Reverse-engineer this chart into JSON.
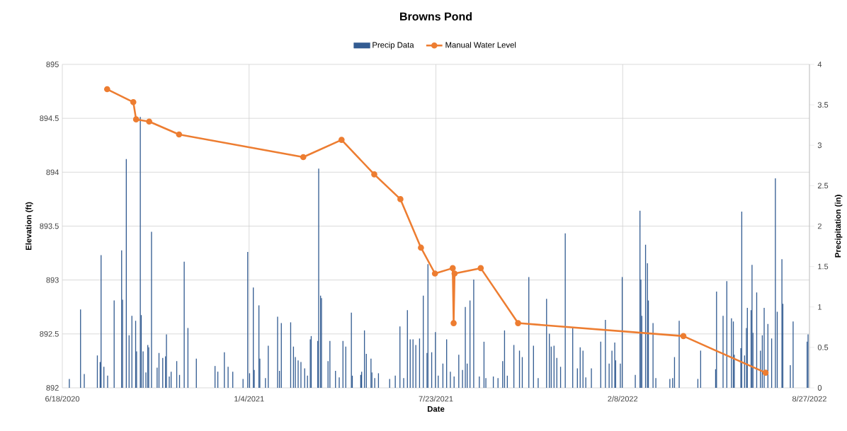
{
  "chart_data": {
    "type": "bar",
    "title": "Browns Pond",
    "xlabel": "Date",
    "ylabel": "Elevation (ft)",
    "y2label": "Precipitation (in)",
    "xlim": [
      "2020-06-18",
      "2022-08-27"
    ],
    "xticks": [
      {
        "value": "2020-06-18",
        "label": "6/18/2020"
      },
      {
        "value": "2021-01-04",
        "label": "1/4/2021"
      },
      {
        "value": "2021-07-23",
        "label": "7/23/2021"
      },
      {
        "value": "2022-02-08",
        "label": "2/8/2022"
      },
      {
        "value": "2022-08-27",
        "label": "8/27/2022"
      }
    ],
    "ylim": [
      892,
      895
    ],
    "yticks": [
      892,
      892.5,
      893,
      893.5,
      894,
      894.5,
      895
    ],
    "y2lim": [
      0,
      4
    ],
    "y2ticks": [
      0,
      0.5,
      1,
      1.5,
      2,
      2.5,
      3,
      3.5,
      4
    ],
    "grid": true,
    "legend": "top",
    "series": [
      {
        "name": "Precip Data",
        "axis": "y2",
        "color": "#335c92",
        "x": [
          "2020-06-25",
          "2020-07-07",
          "2020-07-11",
          "2020-07-25",
          "2020-07-28",
          "2020-07-29",
          "2020-08-01",
          "2020-08-05",
          "2020-08-12",
          "2020-08-20",
          "2020-08-21",
          "2020-08-25",
          "2020-08-28",
          "2020-08-31",
          "2020-09-04",
          "2020-09-05",
          "2020-09-09",
          "2020-09-10",
          "2020-09-12",
          "2020-09-15",
          "2020-09-17",
          "2020-09-18",
          "2020-09-21",
          "2020-09-27",
          "2020-09-29",
          "2020-10-03",
          "2020-10-06",
          "2020-10-07",
          "2020-10-10",
          "2020-10-12",
          "2020-10-18",
          "2020-10-21",
          "2020-10-26",
          "2020-10-30",
          "2020-11-08",
          "2020-11-28",
          "2020-12-01",
          "2020-12-08",
          "2020-12-12",
          "2020-12-17",
          "2020-12-28",
          "2021-01-02",
          "2021-01-04",
          "2021-01-08",
          "2021-01-09",
          "2021-01-14",
          "2021-01-15",
          "2021-01-21",
          "2021-01-24",
          "2021-02-03",
          "2021-02-05",
          "2021-02-07",
          "2021-02-17",
          "2021-02-20",
          "2021-02-22",
          "2021-02-25",
          "2021-02-28",
          "2021-03-04",
          "2021-03-07",
          "2021-03-10",
          "2021-03-11",
          "2021-03-18",
          "2021-03-19",
          "2021-03-21",
          "2021-03-22",
          "2021-03-29",
          "2021-03-31",
          "2021-04-06",
          "2021-04-10",
          "2021-04-14",
          "2021-04-17",
          "2021-04-23",
          "2021-04-24",
          "2021-05-03",
          "2021-05-04",
          "2021-05-07",
          "2021-05-09",
          "2021-05-14",
          "2021-05-15",
          "2021-05-18",
          "2021-05-22",
          "2021-06-03",
          "2021-06-09",
          "2021-06-14",
          "2021-06-18",
          "2021-06-22",
          "2021-06-25",
          "2021-06-28",
          "2021-07-01",
          "2021-07-05",
          "2021-07-09",
          "2021-07-13",
          "2021-07-14",
          "2021-07-18",
          "2021-07-22",
          "2021-07-25",
          "2021-07-30",
          "2021-08-03",
          "2021-08-07",
          "2021-08-11",
          "2021-08-16",
          "2021-08-20",
          "2021-08-23",
          "2021-08-25",
          "2021-08-28",
          "2021-09-01",
          "2021-09-07",
          "2021-09-12",
          "2021-09-14",
          "2021-09-22",
          "2021-09-27",
          "2021-10-02",
          "2021-10-04",
          "2021-10-07",
          "2021-10-14",
          "2021-10-20",
          "2021-10-23",
          "2021-10-30",
          "2021-11-04",
          "2021-11-09",
          "2021-11-18",
          "2021-11-21",
          "2021-11-23",
          "2021-11-26",
          "2021-11-29",
          "2021-12-03",
          "2021-12-08",
          "2021-12-16",
          "2021-12-21",
          "2021-12-24",
          "2021-12-27",
          "2021-12-30",
          "2022-01-05",
          "2022-01-15",
          "2022-01-20",
          "2022-01-24",
          "2022-01-27",
          "2022-01-30",
          "2022-01-31",
          "2022-02-05",
          "2022-02-07",
          "2022-02-21",
          "2022-02-26",
          "2022-02-27",
          "2022-02-28",
          "2022-03-04",
          "2022-03-06",
          "2022-03-07",
          "2022-03-12",
          "2022-03-15",
          "2022-03-30",
          "2022-04-02",
          "2022-04-04",
          "2022-04-09",
          "2022-04-29",
          "2022-05-02",
          "2022-05-18",
          "2022-05-19",
          "2022-05-26",
          "2022-05-30",
          "2022-06-04",
          "2022-06-06",
          "2022-06-07",
          "2022-06-14",
          "2022-06-15",
          "2022-06-18",
          "2022-06-20",
          "2022-06-21",
          "2022-06-25",
          "2022-06-26",
          "2022-06-27",
          "2022-07-01",
          "2022-07-05",
          "2022-07-07",
          "2022-07-09",
          "2022-07-13",
          "2022-07-17",
          "2022-07-21",
          "2022-07-23",
          "2022-07-28",
          "2022-07-29",
          "2022-08-06",
          "2022-08-09",
          "2022-08-24",
          "2022-08-25"
        ],
        "values": [
          0.11,
          0.97,
          0.17,
          0.4,
          0.32,
          1.64,
          0.26,
          0.15,
          1.08,
          1.7,
          1.09,
          2.83,
          0.65,
          0.89,
          0.83,
          0.45,
          3.35,
          0.9,
          0.45,
          0.19,
          0.53,
          0.5,
          1.93,
          0.25,
          0.43,
          0.37,
          0.39,
          0.66,
          0.14,
          0.2,
          0.33,
          0.16,
          1.56,
          0.74,
          0.36,
          0.27,
          0.2,
          0.44,
          0.26,
          0.2,
          0.11,
          1.68,
          0.18,
          1.24,
          0.22,
          1.02,
          0.36,
          0.12,
          0.52,
          0.88,
          0.21,
          0.8,
          0.81,
          0.51,
          0.38,
          0.34,
          0.32,
          0.24,
          0.15,
          0.6,
          0.64,
          0.58,
          2.71,
          1.14,
          1.11,
          0.33,
          0.58,
          0.21,
          0.13,
          0.58,
          0.51,
          0.93,
          0.15,
          0.16,
          0.2,
          0.71,
          0.42,
          0.36,
          0.19,
          0.12,
          0.18,
          0.11,
          0.15,
          0.76,
          0.12,
          0.96,
          0.6,
          0.6,
          0.53,
          0.61,
          1.14,
          0.43,
          1.53,
          0.44,
          0.69,
          0.15,
          0.3,
          0.6,
          0.2,
          0.14,
          0.41,
          0.22,
          1.0,
          0.3,
          1.08,
          1.34,
          0.14,
          0.57,
          0.12,
          0.14,
          0.12,
          0.33,
          0.71,
          0.15,
          0.53,
          0.46,
          0.38,
          1.37,
          0.52,
          0.12,
          1.1,
          0.67,
          0.51,
          0.52,
          0.37,
          0.26,
          1.91,
          0.74,
          0.24,
          0.5,
          0.46,
          0.13,
          0.24,
          0.57,
          0.84,
          0.3,
          0.46,
          0.56,
          0.34,
          0.3,
          1.37,
          0.16,
          2.19,
          1.34,
          0.89,
          1.77,
          1.54,
          1.08,
          0.8,
          0.12,
          0.11,
          0.12,
          0.38,
          0.83,
          0.11,
          0.46,
          0.23,
          1.19,
          0.89,
          1.32,
          0.86,
          0.82,
          0.41,
          0.49,
          2.18,
          0.4,
          0.74,
          0.99,
          0.96,
          1.52,
          0.68,
          1.18,
          0.46,
          0.65,
          0.99,
          0.79,
          0.61,
          2.59,
          0.94,
          1.59,
          1.04,
          0.28,
          0.82,
          0.57,
          0.66
        ]
      },
      {
        "name": "Manual Water Level",
        "type": "line",
        "color": "#ed7d31",
        "marker": "circle",
        "x": [
          "2020-08-05",
          "2020-09-02",
          "2020-09-05",
          "2020-09-19",
          "2020-10-21",
          "2021-03-03",
          "2021-04-13",
          "2021-05-18",
          "2021-06-15",
          "2021-07-07",
          "2021-07-22",
          "2021-08-10",
          "2021-08-11",
          "2021-08-12",
          "2021-09-09",
          "2021-10-19",
          "2022-04-14",
          "2022-07-11"
        ],
        "values": [
          894.77,
          894.65,
          894.49,
          894.47,
          894.35,
          894.14,
          894.3,
          893.98,
          893.75,
          893.3,
          893.06,
          893.11,
          892.6,
          893.06,
          893.11,
          892.6,
          892.48,
          892.14
        ]
      }
    ]
  }
}
